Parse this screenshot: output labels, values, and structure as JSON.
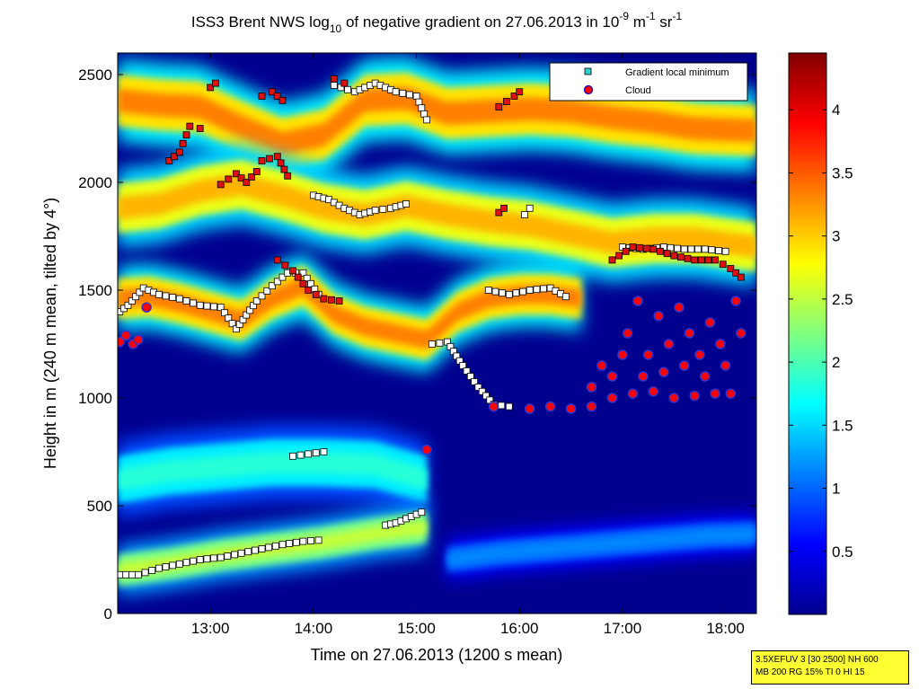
{
  "chart_data": {
    "type": "heatmap",
    "title": {
      "prefix": "ISS3 Brent NWS log",
      "sub": "10",
      "middle": " of negative gradient on 27.06.2013 in 10",
      "exp1": "-9",
      "unit1": " m",
      "exp2": "-1",
      "unit2": " sr",
      "exp3": "-1"
    },
    "xlabel": "Time on 27.06.2013 (1200 s mean)",
    "ylabel": "Height in m (240 m mean, tilted by 4°)",
    "xlim": [
      12.1,
      18.3
    ],
    "ylim": [
      0,
      2600
    ],
    "xticks": [
      {
        "value": 13,
        "label": "13:00"
      },
      {
        "value": 14,
        "label": "14:00"
      },
      {
        "value": 15,
        "label": "15:00"
      },
      {
        "value": 16,
        "label": "16:00"
      },
      {
        "value": 17,
        "label": "17:00"
      },
      {
        "value": 18,
        "label": "18:00"
      }
    ],
    "yticks": [
      {
        "value": 0,
        "label": "0"
      },
      {
        "value": 500,
        "label": "500"
      },
      {
        "value": 1000,
        "label": "1000"
      },
      {
        "value": 1500,
        "label": "1500"
      },
      {
        "value": 2000,
        "label": "2000"
      },
      {
        "value": 2500,
        "label": "2500"
      }
    ],
    "colorbar": {
      "range": [
        0,
        4.45
      ],
      "ticks": [
        {
          "value": 0.5,
          "label": "0.5"
        },
        {
          "value": 1,
          "label": "1"
        },
        {
          "value": 1.5,
          "label": "1.5"
        },
        {
          "value": 2,
          "label": "2"
        },
        {
          "value": 2.5,
          "label": "2.5"
        },
        {
          "value": 3,
          "label": "3"
        },
        {
          "value": 3.5,
          "label": "3.5"
        },
        {
          "value": 4,
          "label": "4"
        }
      ],
      "colormap": "jet"
    },
    "legend": {
      "position": "top-right",
      "entries": [
        {
          "name": "Gradient local minimum",
          "marker": "square",
          "color": "#33cccc"
        },
        {
          "name": "Cloud",
          "marker": "circle",
          "color": "#ff0000",
          "edge": "#0000cc"
        }
      ]
    },
    "layers": [
      {
        "name": "upper",
        "points": [
          [
            12.1,
            2380
          ],
          [
            12.5,
            2360
          ],
          [
            12.9,
            2350
          ],
          [
            13.3,
            2260
          ],
          [
            13.7,
            2180
          ],
          [
            14.1,
            2220
          ],
          [
            14.5,
            2380
          ],
          [
            14.9,
            2390
          ],
          [
            15.3,
            2320
          ],
          [
            15.7,
            2330
          ],
          [
            16.1,
            2340
          ],
          [
            16.5,
            2330
          ],
          [
            16.9,
            2300
          ],
          [
            17.3,
            2280
          ],
          [
            17.7,
            2250
          ],
          [
            18.3,
            2240
          ]
        ],
        "thickness": 240,
        "value": 2.9
      },
      {
        "name": "middle",
        "points": [
          [
            12.1,
            1880
          ],
          [
            12.5,
            1900
          ],
          [
            12.9,
            1960
          ],
          [
            13.3,
            1990
          ],
          [
            13.7,
            1940
          ],
          [
            14.1,
            1880
          ],
          [
            14.5,
            1850
          ],
          [
            14.9,
            1890
          ],
          [
            15.3,
            1850
          ],
          [
            15.7,
            1820
          ],
          [
            16.1,
            1800
          ],
          [
            16.5,
            1760
          ],
          [
            16.9,
            1720
          ],
          [
            17.3,
            1740
          ],
          [
            17.7,
            1740
          ],
          [
            18.3,
            1700
          ]
        ],
        "thickness": 230,
        "value": 2.7
      },
      {
        "name": "lower",
        "points": [
          [
            12.1,
            1460
          ],
          [
            12.4,
            1470
          ],
          [
            12.7,
            1440
          ],
          [
            13.0,
            1400
          ],
          [
            13.3,
            1360
          ],
          [
            13.6,
            1460
          ],
          [
            13.9,
            1520
          ],
          [
            14.2,
            1390
          ],
          [
            14.5,
            1330
          ],
          [
            14.8,
            1300
          ],
          [
            15.1,
            1270
          ],
          [
            15.4,
            1400
          ],
          [
            15.7,
            1460
          ],
          [
            16.0,
            1480
          ],
          [
            16.3,
            1480
          ],
          [
            16.6,
            1460
          ]
        ],
        "thickness": 190,
        "value": 2.9
      },
      {
        "name": "boundary",
        "points": [
          [
            12.1,
            620
          ],
          [
            12.6,
            660
          ],
          [
            13.1,
            680
          ],
          [
            13.6,
            700
          ],
          [
            14.1,
            700
          ],
          [
            14.6,
            690
          ],
          [
            15.1,
            620
          ]
        ],
        "thickness": 220,
        "value": 1.6
      },
      {
        "name": "surface",
        "points": [
          [
            12.1,
            200
          ],
          [
            12.6,
            230
          ],
          [
            13.1,
            270
          ],
          [
            13.6,
            300
          ],
          [
            14.1,
            330
          ],
          [
            14.6,
            370
          ],
          [
            15.1,
            400
          ]
        ],
        "thickness": 150,
        "value": 2.2
      },
      {
        "name": "surface-late",
        "points": [
          [
            15.3,
            250
          ],
          [
            15.8,
            280
          ],
          [
            16.3,
            300
          ],
          [
            16.8,
            320
          ],
          [
            17.3,
            340
          ],
          [
            17.8,
            360
          ],
          [
            18.3,
            370
          ]
        ],
        "thickness": 120,
        "value": 1.0
      }
    ],
    "gradient_minima_tracks": [
      {
        "style": "white",
        "points": [
          [
            12.12,
            180
          ],
          [
            12.3,
            180
          ],
          [
            12.5,
            210
          ],
          [
            12.7,
            230
          ],
          [
            12.9,
            250
          ],
          [
            13.1,
            260
          ],
          [
            13.3,
            280
          ],
          [
            13.5,
            300
          ],
          [
            13.7,
            320
          ],
          [
            13.9,
            335
          ],
          [
            14.05,
            340
          ]
        ]
      },
      {
        "style": "white",
        "points": [
          [
            12.12,
            1400
          ],
          [
            12.2,
            1430
          ],
          [
            12.35,
            1510
          ],
          [
            12.5,
            1480
          ],
          [
            12.7,
            1460
          ],
          [
            12.9,
            1430
          ],
          [
            13.1,
            1420
          ],
          [
            13.25,
            1320
          ],
          [
            13.45,
            1450
          ],
          [
            13.6,
            1520
          ],
          [
            13.75,
            1580
          ],
          [
            13.9,
            1580
          ],
          [
            14.05,
            1480
          ]
        ]
      },
      {
        "style": "white",
        "points": [
          [
            13.8,
            730
          ],
          [
            13.95,
            740
          ],
          [
            14.1,
            750
          ]
        ]
      },
      {
        "style": "white",
        "points": [
          [
            14.7,
            410
          ],
          [
            14.8,
            420
          ],
          [
            14.95,
            450
          ],
          [
            15.05,
            470
          ]
        ]
      },
      {
        "style": "white",
        "points": [
          [
            14.0,
            1940
          ],
          [
            14.15,
            1920
          ],
          [
            14.3,
            1880
          ],
          [
            14.45,
            1850
          ],
          [
            14.6,
            1870
          ],
          [
            14.75,
            1880
          ],
          [
            14.9,
            1900
          ]
        ]
      },
      {
        "style": "white",
        "points": [
          [
            14.2,
            2450
          ],
          [
            14.4,
            2420
          ],
          [
            14.6,
            2460
          ],
          [
            14.8,
            2420
          ],
          [
            15.0,
            2400
          ],
          [
            15.1,
            2290
          ]
        ]
      },
      {
        "style": "white",
        "points": [
          [
            15.15,
            1250
          ],
          [
            15.3,
            1260
          ],
          [
            15.45,
            1150
          ],
          [
            15.6,
            1050
          ],
          [
            15.75,
            970
          ],
          [
            15.9,
            960
          ]
        ]
      },
      {
        "style": "white",
        "points": [
          [
            15.7,
            1500
          ],
          [
            15.9,
            1480
          ],
          [
            16.1,
            1500
          ],
          [
            16.3,
            1510
          ],
          [
            16.45,
            1470
          ]
        ]
      },
      {
        "style": "white",
        "points": [
          [
            16.05,
            1850
          ],
          [
            16.1,
            1880
          ]
        ]
      },
      {
        "style": "white",
        "points": [
          [
            17.0,
            1700
          ],
          [
            17.2,
            1690
          ],
          [
            17.4,
            1700
          ],
          [
            17.6,
            1690
          ],
          [
            17.8,
            1690
          ],
          [
            18.0,
            1680
          ]
        ]
      }
    ],
    "red_square_tracks": [
      {
        "points": [
          [
            12.6,
            2100
          ],
          [
            12.7,
            2140
          ],
          [
            12.8,
            2260
          ],
          [
            12.9,
            2250
          ]
        ]
      },
      {
        "points": [
          [
            13.1,
            1990
          ],
          [
            13.25,
            2040
          ],
          [
            13.35,
            2000
          ],
          [
            13.45,
            2050
          ]
        ]
      },
      {
        "points": [
          [
            13.0,
            2440
          ],
          [
            13.05,
            2460
          ]
        ]
      },
      {
        "points": [
          [
            13.5,
            2400
          ],
          [
            13.6,
            2420
          ],
          [
            13.7,
            2380
          ]
        ]
      },
      {
        "points": [
          [
            13.65,
            1640
          ],
          [
            13.8,
            1590
          ],
          [
            13.95,
            1500
          ],
          [
            14.1,
            1460
          ],
          [
            14.25,
            1450
          ]
        ]
      },
      {
        "points": [
          [
            13.5,
            2100
          ],
          [
            13.65,
            2120
          ],
          [
            13.75,
            2030
          ]
        ]
      },
      {
        "points": [
          [
            14.2,
            2480
          ],
          [
            14.3,
            2460
          ]
        ]
      },
      {
        "points": [
          [
            15.8,
            2350
          ],
          [
            15.95,
            2400
          ],
          [
            16.0,
            2420
          ]
        ]
      },
      {
        "points": [
          [
            15.8,
            1860
          ],
          [
            15.85,
            1880
          ]
        ]
      },
      {
        "points": [
          [
            16.9,
            1640
          ],
          [
            17.1,
            1700
          ],
          [
            17.3,
            1690
          ],
          [
            17.5,
            1660
          ],
          [
            17.7,
            1640
          ],
          [
            17.9,
            1640
          ],
          [
            18.05,
            1600
          ],
          [
            18.15,
            1560
          ]
        ]
      }
    ],
    "cloud_points": [
      [
        12.12,
        1260
      ],
      [
        12.18,
        1290
      ],
      [
        12.25,
        1250
      ],
      [
        12.3,
        1270
      ],
      [
        12.38,
        1420
      ],
      [
        15.1,
        760
      ],
      [
        15.75,
        960
      ],
      [
        16.1,
        950
      ],
      [
        16.3,
        960
      ],
      [
        16.5,
        950
      ],
      [
        16.7,
        960
      ],
      [
        16.9,
        1000
      ],
      [
        17.1,
        1020
      ],
      [
        17.3,
        1030
      ],
      [
        17.5,
        1000
      ],
      [
        17.7,
        1010
      ],
      [
        17.9,
        1020
      ],
      [
        18.05,
        1020
      ],
      [
        16.9,
        1100
      ],
      [
        17.05,
        1300
      ],
      [
        17.15,
        1450
      ],
      [
        17.25,
        1200
      ],
      [
        17.35,
        1380
      ],
      [
        17.45,
        1250
      ],
      [
        17.55,
        1420
      ],
      [
        17.65,
        1300
      ],
      [
        17.75,
        1200
      ],
      [
        17.85,
        1350
      ],
      [
        17.95,
        1250
      ],
      [
        18.1,
        1450
      ],
      [
        18.15,
        1300
      ],
      [
        17.0,
        1200
      ],
      [
        17.2,
        1100
      ],
      [
        17.4,
        1120
      ],
      [
        17.6,
        1150
      ],
      [
        17.8,
        1100
      ],
      [
        18.0,
        1150
      ],
      [
        16.7,
        1050
      ],
      [
        16.8,
        1150
      ]
    ],
    "info_lines": [
      "3.5XEFUV 3 [30 2500] NH 600",
      "MB 200 RG 15% TI 0 HI 15"
    ]
  }
}
